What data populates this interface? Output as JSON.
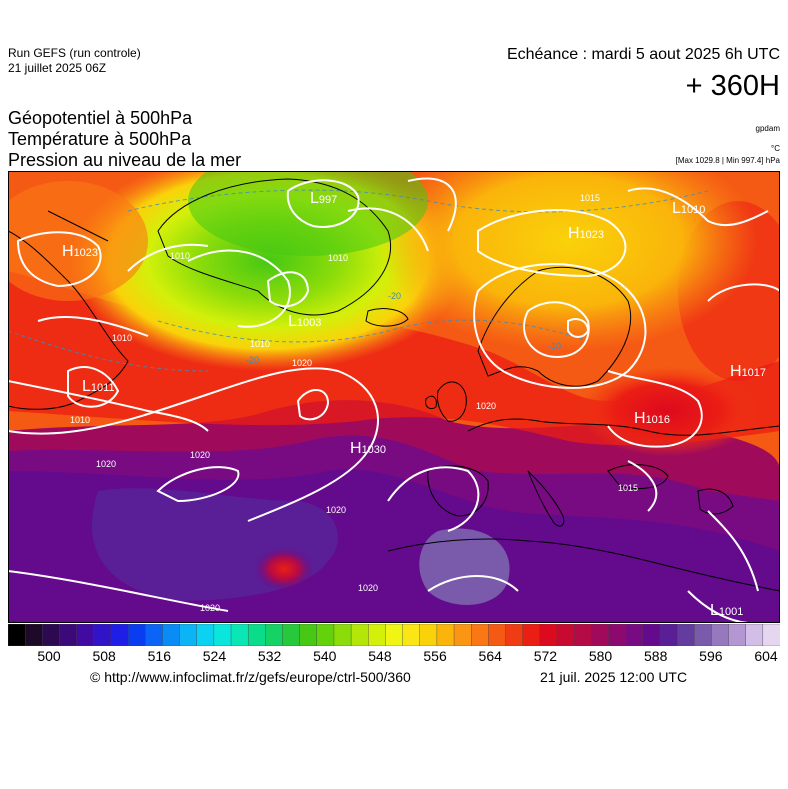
{
  "header": {
    "run": "Run GEFS (run controle)",
    "run_date": "21 juillet 2025 06Z",
    "echeance": "Echéance : mardi 5 aout 2025 6h UTC",
    "lead": "+ 360H",
    "fields": [
      "Géopotentiel à 500hPa",
      "Température à 500hPa",
      "Pression au niveau de la mer"
    ],
    "unit_geo": "gpdam",
    "unit_temp": "°C",
    "minmax": "[Max 1029.8 | Min 997.4] hPa"
  },
  "map": {
    "pressure_centers": [
      {
        "type": "H",
        "value": "1023",
        "place": "Canada (Labrador)"
      },
      {
        "type": "L",
        "value": "997",
        "place": "Greenland north"
      },
      {
        "type": "L",
        "value": "1003",
        "place": "Greenland south"
      },
      {
        "type": "L",
        "value": "1011",
        "place": "Newfoundland"
      },
      {
        "type": "H",
        "value": "1030",
        "place": "Mid-Atlantic (Azores)"
      },
      {
        "type": "H",
        "value": "1023",
        "place": "Arctic / Barents Sea"
      },
      {
        "type": "H",
        "value": "1017",
        "place": "Russia east"
      },
      {
        "type": "H",
        "value": "1016",
        "place": "Eastern Europe"
      },
      {
        "type": "L",
        "value": "1001",
        "place": "Middle East"
      },
      {
        "type": "L",
        "value": "1010",
        "place": "Arctic far north-east"
      }
    ],
    "isobar_labels": [
      "1010",
      "1010",
      "1010",
      "1020",
      "1020",
      "1020",
      "1020",
      "1020",
      "1020",
      "1010",
      "1015",
      "1010",
      "1015",
      "1020"
    ],
    "isotherm_labels": [
      "-20",
      "-20",
      "-10"
    ]
  },
  "colorbar": {
    "colors": [
      "#000000",
      "#1e0a28",
      "#2d0a50",
      "#3c0a78",
      "#410aa0",
      "#3214c8",
      "#1e1ee6",
      "#0a3cf0",
      "#0a64f5",
      "#0a8cf5",
      "#0ab4f5",
      "#0ad2f0",
      "#0ae6dc",
      "#0ae6b4",
      "#0adc8c",
      "#14d264",
      "#28c83c",
      "#46c814",
      "#64d20a",
      "#8cdc0a",
      "#b4e60a",
      "#d2f00a",
      "#f0f514",
      "#fae614",
      "#fad20a",
      "#fab40a",
      "#fa9614",
      "#fa7814",
      "#f55a14",
      "#f03c14",
      "#eb1e14",
      "#dc0a1e",
      "#c80a32",
      "#b40a46",
      "#a00a5a",
      "#8c0a6e",
      "#780a82",
      "#640a8c",
      "#5a1e96",
      "#643ca0",
      "#7a5aaa",
      "#9678be",
      "#b496d2",
      "#d2bee6",
      "#e6d7f0"
    ],
    "ticks": [
      "500",
      "508",
      "516",
      "524",
      "532",
      "540",
      "548",
      "556",
      "564",
      "572",
      "580",
      "588",
      "596",
      "604"
    ]
  },
  "footer": {
    "source": "© http://www.infoclimat.fr/z/gefs/europe/ctrl-500/360",
    "generated": "21 juil. 2025 12:00 UTC"
  }
}
